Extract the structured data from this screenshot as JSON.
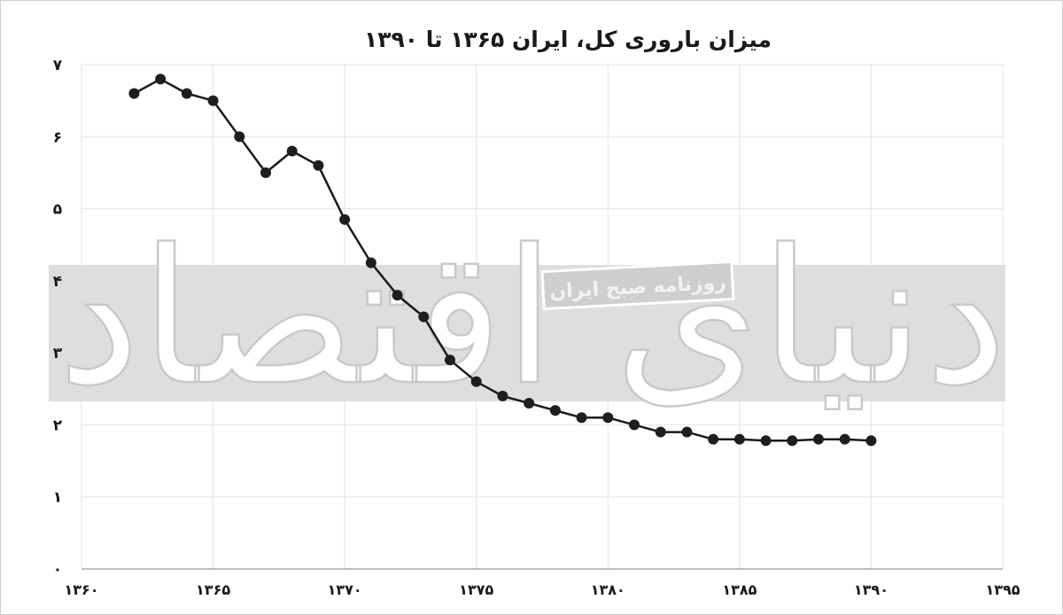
{
  "chart_data": {
    "type": "line",
    "title": "میزان باروری کل، ایران ۱۳۶۵ تا ۱۳۹۰",
    "xlabel": "",
    "ylabel": "",
    "xlim": [
      1360,
      1395
    ],
    "ylim": [
      0,
      7
    ],
    "x_ticks": [
      "۱۳۶۰",
      "۱۳۶۵",
      "۱۳۷۰",
      "۱۳۷۵",
      "۱۳۸۰",
      "۱۳۸۵",
      "۱۳۹۰",
      "۱۳۹۵"
    ],
    "y_ticks": [
      "۰",
      "۱",
      "۲",
      "۳",
      "۴",
      "۵",
      "۶",
      "۷"
    ],
    "grid": true,
    "series": [
      {
        "x": [
          1362,
          1363,
          1364,
          1365,
          1366,
          1367,
          1368,
          1369,
          1370,
          1371,
          1372,
          1373,
          1374,
          1375,
          1376,
          1377,
          1378,
          1379,
          1380,
          1381,
          1382,
          1383,
          1384,
          1385,
          1386,
          1387,
          1388,
          1389,
          1390
        ],
        "values": [
          6.6,
          6.8,
          6.6,
          6.5,
          6.0,
          5.5,
          5.8,
          5.6,
          4.85,
          4.25,
          3.8,
          3.5,
          2.9,
          2.6,
          2.4,
          2.3,
          2.2,
          2.1,
          2.1,
          2.0,
          1.9,
          1.9,
          1.8,
          1.8,
          1.78,
          1.78,
          1.8,
          1.8,
          1.78
        ]
      }
    ],
    "colors": {
      "line": "#1a1a1a",
      "marker": "#1e1e1e",
      "grid": "#e3e3e3",
      "band": "#dedede"
    }
  },
  "watermark": {
    "main_text": "دنیای اقتصاد",
    "sub_text": "روزنامه صبح ایران"
  }
}
